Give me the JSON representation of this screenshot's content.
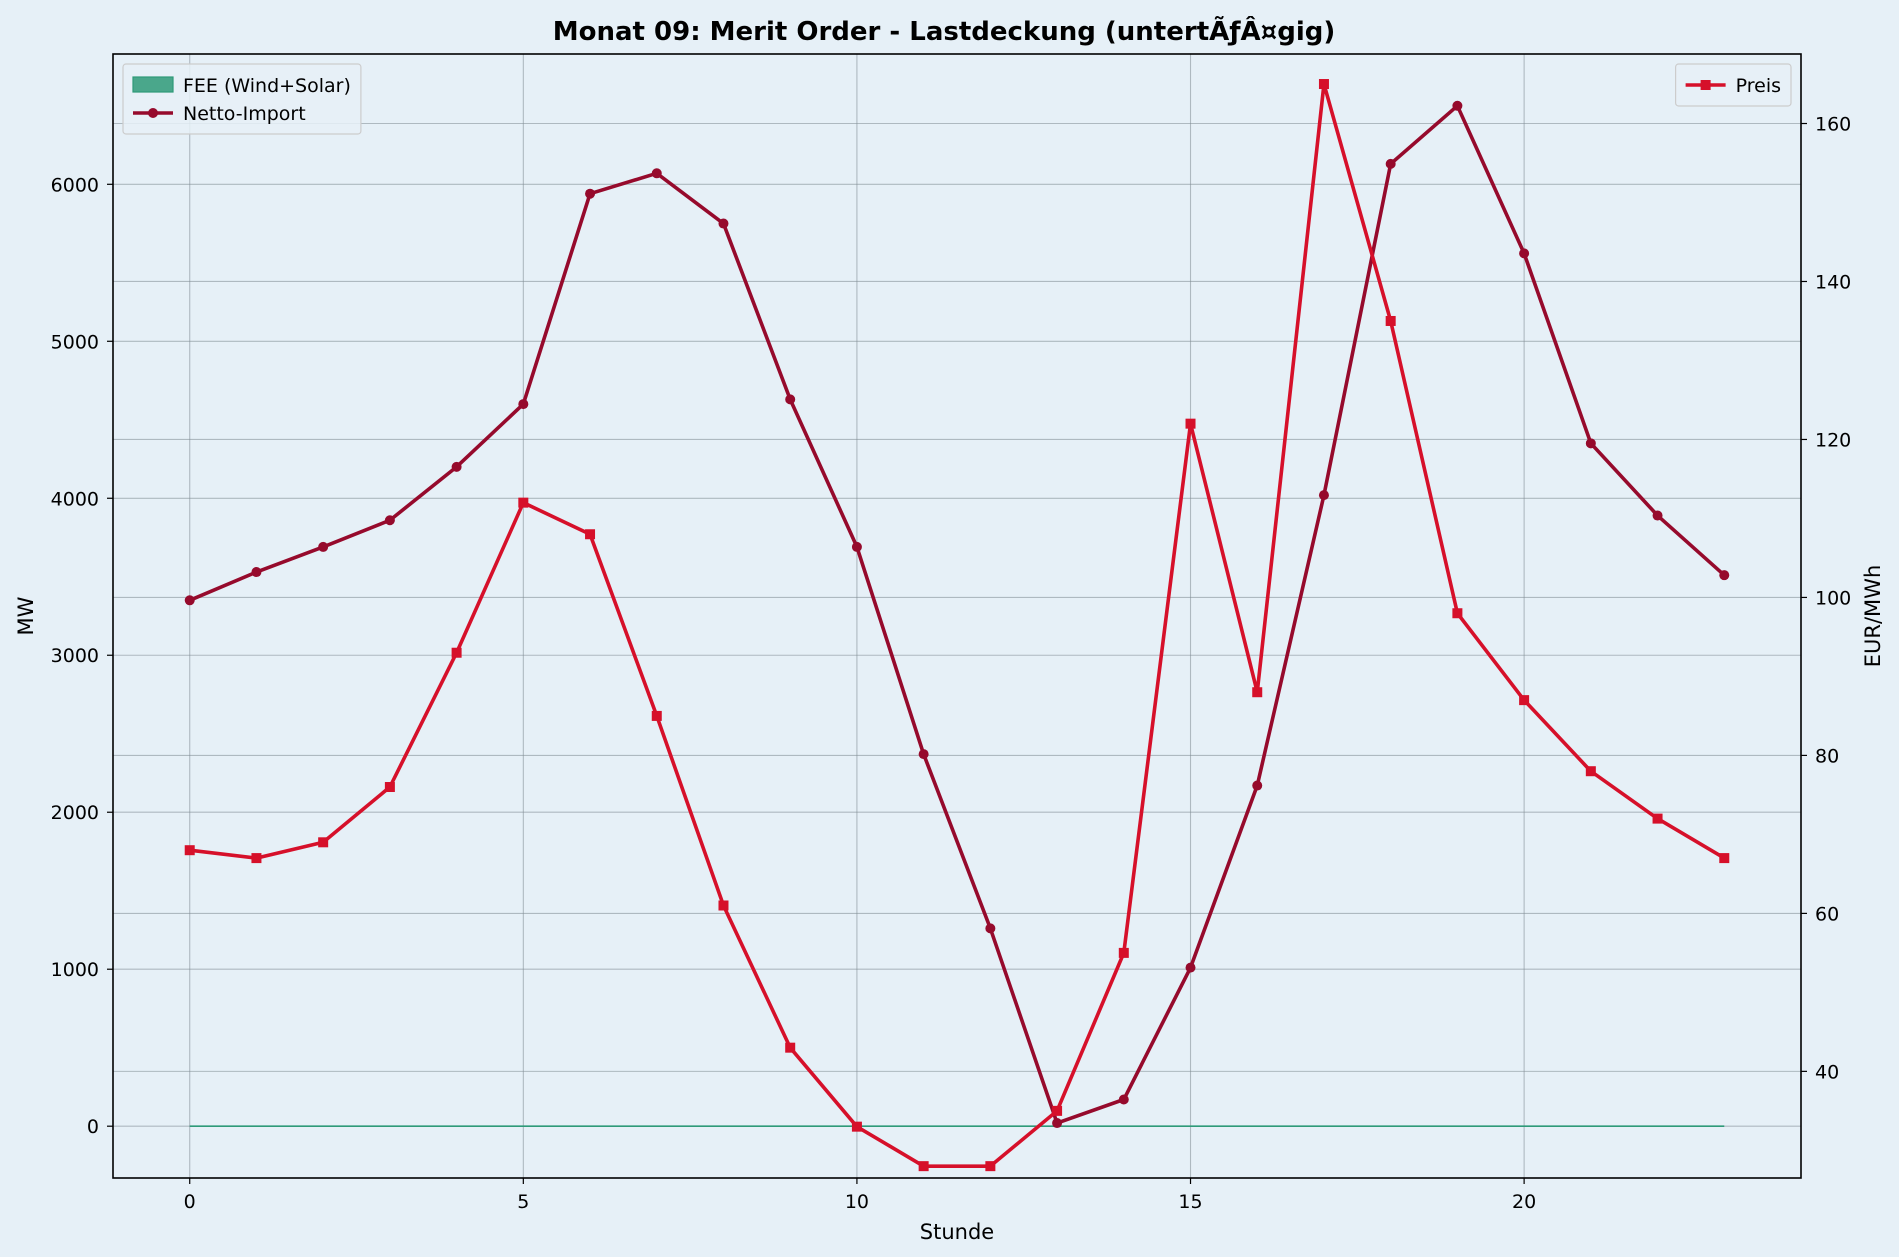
{
  "chart_data": {
    "type": "line",
    "title": "Monat 09: Merit Order - Lastdeckung (untertÃƒÂ¤gig)",
    "xlabel": "Stunde",
    "ylabel": "MW",
    "ylabel_right": "EUR/MWh",
    "x": [
      0,
      1,
      2,
      3,
      4,
      5,
      6,
      7,
      8,
      9,
      10,
      11,
      12,
      13,
      14,
      15,
      16,
      17,
      18,
      19,
      20,
      21,
      22,
      23
    ],
    "xlim": [
      -1.15,
      24.15
    ],
    "ylim": [
      -330,
      6830
    ],
    "ylim_right": [
      26.5,
      168.8
    ],
    "xticks": [
      0,
      5,
      10,
      15,
      20
    ],
    "yticks": [
      0,
      1000,
      2000,
      3000,
      4000,
      5000,
      6000
    ],
    "yticks_right": [
      40,
      60,
      80,
      100,
      120,
      140,
      160
    ],
    "grid": true,
    "series": [
      {
        "name": "FEE (Wind+Solar)",
        "kind": "area",
        "axis": "left",
        "color": "#2e9a78",
        "values": [
          0,
          0,
          0,
          0,
          0,
          0,
          0,
          0,
          0,
          0,
          0,
          0,
          0,
          0,
          0,
          0,
          0,
          0,
          0,
          0,
          0,
          0,
          0,
          0
        ]
      },
      {
        "name": "Netto-Import",
        "kind": "line",
        "axis": "left",
        "marker": "circle",
        "color": "#960a2c",
        "values": [
          3350,
          3530,
          3690,
          3860,
          4200,
          4600,
          5940,
          6070,
          5750,
          4630,
          3690,
          2370,
          1260,
          20,
          170,
          1010,
          2170,
          4020,
          6130,
          6500,
          5560,
          4350,
          3890,
          3510
        ]
      },
      {
        "name": "Preis",
        "kind": "line",
        "axis": "right",
        "marker": "square",
        "color": "#d6102a",
        "values": [
          68,
          67,
          69,
          76,
          93,
          112,
          108,
          85,
          61,
          43,
          33,
          28,
          28,
          35,
          55,
          122,
          88,
          165,
          135,
          98,
          87,
          78,
          72,
          67
        ]
      }
    ],
    "legend_left_placement": "top-left",
    "legend_right_placement": "top-right"
  }
}
